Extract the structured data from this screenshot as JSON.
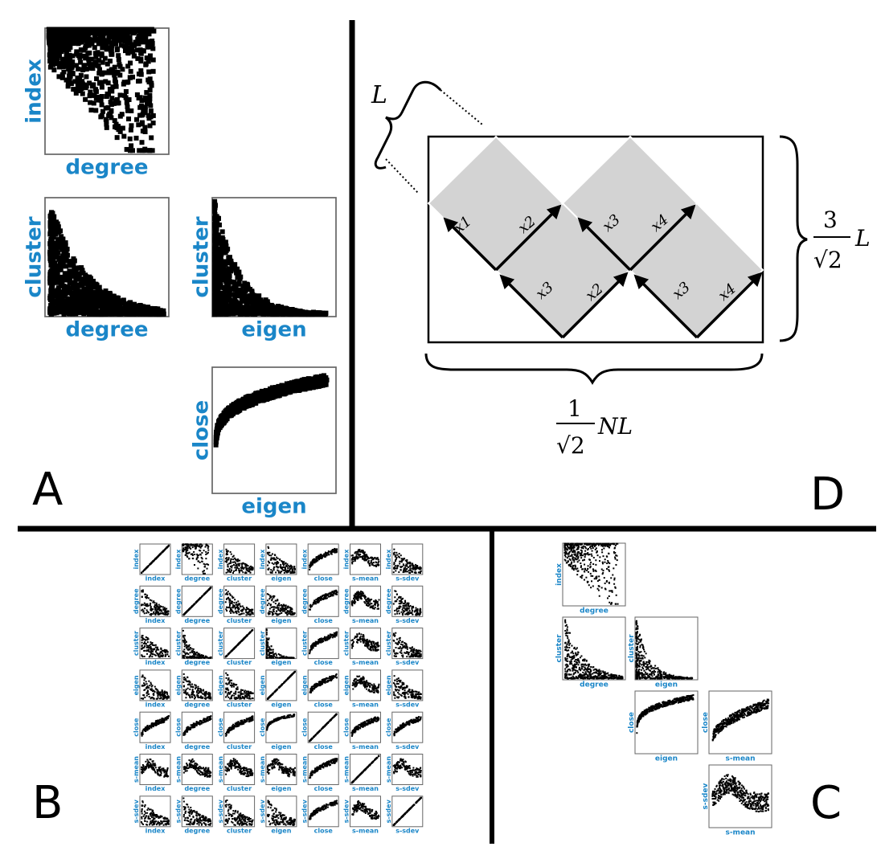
{
  "panels": {
    "A": {
      "letter": "A",
      "plots": [
        {
          "id": "a-index-degree",
          "x": "degree",
          "y": "index"
        },
        {
          "id": "a-cluster-degree",
          "x": "degree",
          "y": "cluster"
        },
        {
          "id": "a-cluster-eigen",
          "x": "eigen",
          "y": "cluster"
        },
        {
          "id": "a-close-eigen",
          "x": "eigen",
          "y": "close"
        }
      ]
    },
    "B": {
      "letter": "B",
      "variables": [
        "index",
        "degree",
        "cluster",
        "eigen",
        "close",
        "s-mean",
        "s-sdev"
      ]
    },
    "C": {
      "letter": "C",
      "plots": [
        {
          "id": "c-index-degree",
          "x": "degree",
          "y": "index"
        },
        {
          "id": "c-cluster-degree",
          "x": "degree",
          "y": "cluster"
        },
        {
          "id": "c-cluster-eigen",
          "x": "eigen",
          "y": "cluster"
        },
        {
          "id": "c-close-eigen",
          "x": "eigen",
          "y": "close"
        },
        {
          "id": "c-close-smean",
          "x": "s-mean",
          "y": "close"
        },
        {
          "id": "c-ssdev-smean",
          "x": "s-mean",
          "y": "s-sdev"
        }
      ]
    },
    "D": {
      "letter": "D",
      "side_label": "L",
      "height_label": {
        "num": "3",
        "den": "√2",
        "sym": "L"
      },
      "width_label": {
        "num": "1",
        "den": "√2",
        "sym": "NL"
      },
      "arrow_labels": [
        "x1",
        "x2",
        "x3",
        "x4",
        "x3",
        "x2",
        "x3",
        "x4"
      ]
    }
  },
  "colors": {
    "axis_label": "#1a86c8",
    "frame": "#666666",
    "points": "#000000",
    "diamond_fill": "#d3d3d3",
    "divider": "#000000"
  }
}
